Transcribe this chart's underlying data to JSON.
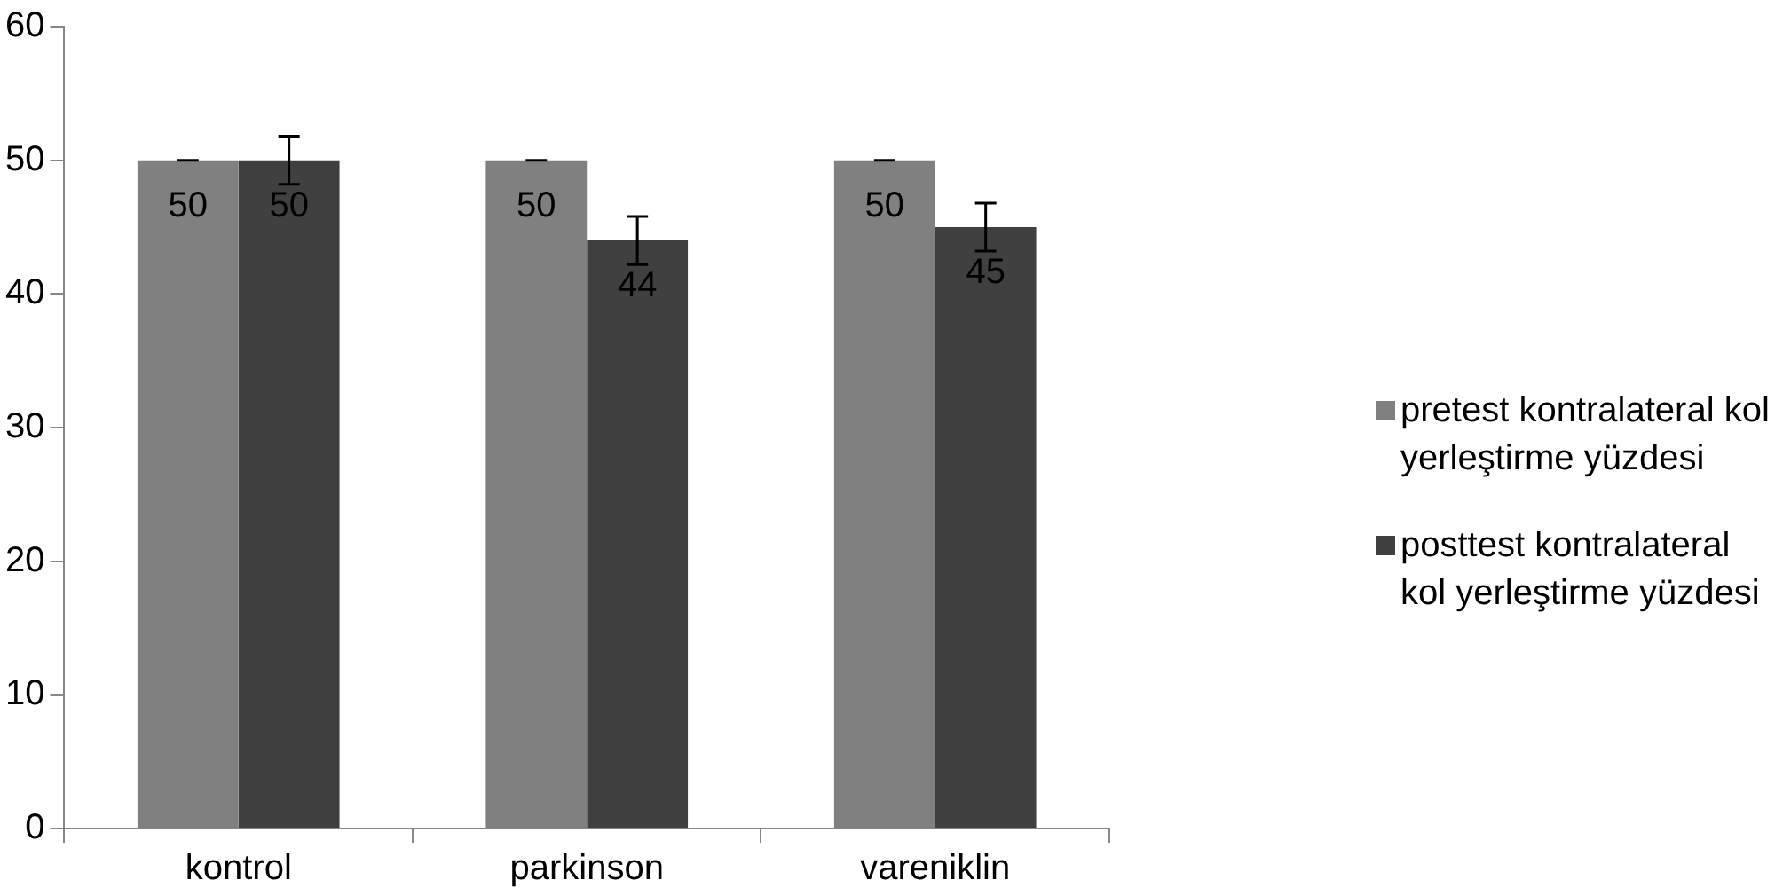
{
  "chart_data": {
    "type": "bar",
    "categories": [
      "kontrol",
      "parkinson",
      "vareniklin"
    ],
    "series": [
      {
        "name": "pretest kontralateral kol yerleştirme yüzdesi",
        "color": "#808080",
        "values": [
          50,
          50,
          50
        ],
        "errors": [
          0,
          0,
          0
        ]
      },
      {
        "name": "posttest kontralateral kol yerleştirme yüzdesi",
        "color": "#404040",
        "values": [
          50,
          44,
          45
        ],
        "errors": [
          1.8,
          1.8,
          1.8
        ]
      }
    ],
    "ylim": [
      0,
      60
    ],
    "yticks": [
      0,
      10,
      20,
      30,
      40,
      50,
      60
    ],
    "grid": false,
    "legend": "right",
    "data_labels": true
  }
}
